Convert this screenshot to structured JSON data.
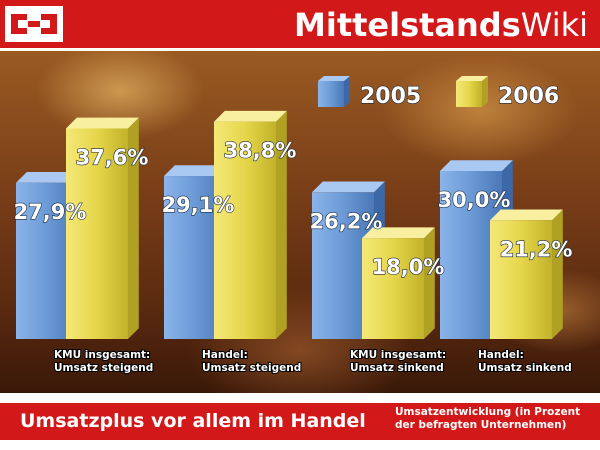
{
  "header": {
    "brand_bold": "Mittelstands",
    "brand_light": "Wiki"
  },
  "footer": {
    "subtitle": "Umsatzplus vor allem im Handel",
    "note_line1": "Umsatzentwicklung (in Prozent",
    "note_line2": "der befragten Unternehmen)"
  },
  "colors": {
    "brand_red": "#d21818",
    "series_2005": "#6b9ad6",
    "series_2006": "#e6d64a"
  },
  "chart_data": {
    "type": "bar",
    "categories": [
      [
        "KMU insgesamt:",
        "Umsatz steigend"
      ],
      [
        "Handel:",
        "Umsatz steigend"
      ],
      [
        "KMU insgesamt:",
        "Umsatz sinkend"
      ],
      [
        "Handel:",
        "Umsatz sinkend"
      ]
    ],
    "series": [
      {
        "name": "2005",
        "values": [
          27.9,
          29.1,
          26.2,
          30.0
        ],
        "labels": [
          "27,9%",
          "29,1%",
          "26,2%",
          "30,0%"
        ]
      },
      {
        "name": "2006",
        "values": [
          37.6,
          38.8,
          18.0,
          21.2
        ],
        "labels": [
          "37,6%",
          "38,8%",
          "18,0%",
          "21,2%"
        ]
      }
    ],
    "title": "",
    "xlabel": "",
    "ylabel": "",
    "ylim": [
      0,
      40
    ],
    "grid": false,
    "legend_position": "top-right"
  }
}
